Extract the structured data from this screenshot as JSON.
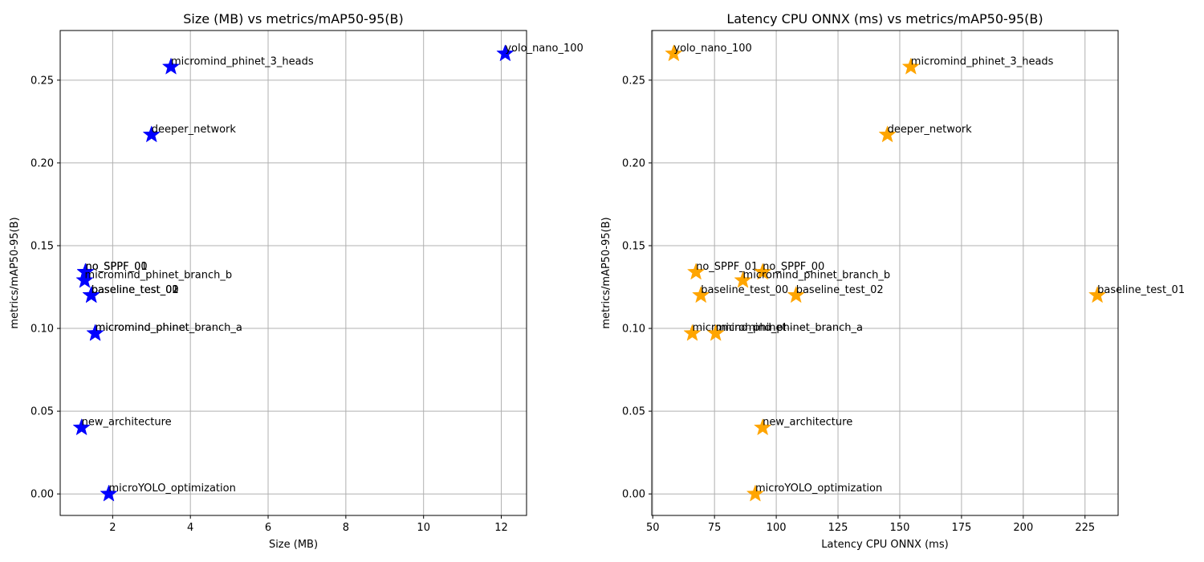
{
  "chart_data": [
    {
      "type": "scatter",
      "title": "Size (MB) vs metrics/mAP50-95(B)",
      "xlabel": "Size (MB)",
      "ylabel": "metrics/mAP50-95(B)",
      "xlim": [
        0.65,
        12.65
      ],
      "ylim": [
        -0.013,
        0.28
      ],
      "xticks": [
        2,
        4,
        6,
        8,
        10,
        12
      ],
      "yticks": [
        0.0,
        0.05,
        0.1,
        0.15,
        0.2,
        0.25
      ],
      "ytick_labels": [
        "0.00",
        "0.05",
        "0.10",
        "0.15",
        "0.20",
        "0.25"
      ],
      "marker": "star",
      "color": "#0000ff",
      "grid": true,
      "points": [
        {
          "label": "yolo_nano_100",
          "x": 12.1,
          "y": 0.266
        },
        {
          "label": "micromind_phinet_3_heads",
          "x": 3.5,
          "y": 0.258
        },
        {
          "label": "deeper_network",
          "x": 3.0,
          "y": 0.217
        },
        {
          "label": "no_SPPF_00",
          "x": 1.3,
          "y": 0.134
        },
        {
          "label": "no_SPPF_01",
          "x": 1.3,
          "y": 0.134
        },
        {
          "label": "micromind_phinet_branch_b",
          "x": 1.28,
          "y": 0.129
        },
        {
          "label": "baseline_test_00",
          "x": 1.45,
          "y": 0.12
        },
        {
          "label": "baseline_test_01",
          "x": 1.45,
          "y": 0.12
        },
        {
          "label": "baseline_test_02",
          "x": 1.45,
          "y": 0.12
        },
        {
          "label": "micromind_phinet",
          "x": 1.55,
          "y": 0.097
        },
        {
          "label": "micromind_phinet_branch_a",
          "x": 1.55,
          "y": 0.097
        },
        {
          "label": "new_architecture",
          "x": 1.2,
          "y": 0.04
        },
        {
          "label": "microYOLO_optimization",
          "x": 1.9,
          "y": 0.0
        }
      ]
    },
    {
      "type": "scatter",
      "title": "Latency CPU ONNX (ms) vs metrics/mAP50-95(B)",
      "xlabel": "Latency CPU ONNX (ms)",
      "ylabel": "metrics/mAP50-95(B)",
      "xlim": [
        49.6,
        238.4
      ],
      "ylim": [
        -0.013,
        0.28
      ],
      "xticks": [
        50,
        75,
        100,
        125,
        150,
        175,
        200,
        225
      ],
      "yticks": [
        0.0,
        0.05,
        0.1,
        0.15,
        0.2,
        0.25
      ],
      "ytick_labels": [
        "0.00",
        "0.05",
        "0.10",
        "0.15",
        "0.20",
        "0.25"
      ],
      "marker": "star",
      "color": "#ffa500",
      "grid": true,
      "points": [
        {
          "label": "yolo_nano_100",
          "x": 58.5,
          "y": 0.266
        },
        {
          "label": "micromind_phinet_3_heads",
          "x": 154.5,
          "y": 0.258
        },
        {
          "label": "deeper_network",
          "x": 145.0,
          "y": 0.217
        },
        {
          "label": "no_SPPF_01",
          "x": 67.5,
          "y": 0.134
        },
        {
          "label": "no_SPPF_00",
          "x": 94.5,
          "y": 0.134
        },
        {
          "label": "micromind_phinet_branch_b",
          "x": 86.5,
          "y": 0.129
        },
        {
          "label": "baseline_test_00",
          "x": 69.5,
          "y": 0.12
        },
        {
          "label": "baseline_test_02",
          "x": 108.0,
          "y": 0.12
        },
        {
          "label": "baseline_test_01",
          "x": 230.0,
          "y": 0.12
        },
        {
          "label": "micromind_phinet",
          "x": 66.0,
          "y": 0.097
        },
        {
          "label": "micromind_phinet_branch_a",
          "x": 75.5,
          "y": 0.097
        },
        {
          "label": "new_architecture",
          "x": 94.5,
          "y": 0.04
        },
        {
          "label": "microYOLO_optimization",
          "x": 91.5,
          "y": 0.0
        }
      ]
    }
  ]
}
